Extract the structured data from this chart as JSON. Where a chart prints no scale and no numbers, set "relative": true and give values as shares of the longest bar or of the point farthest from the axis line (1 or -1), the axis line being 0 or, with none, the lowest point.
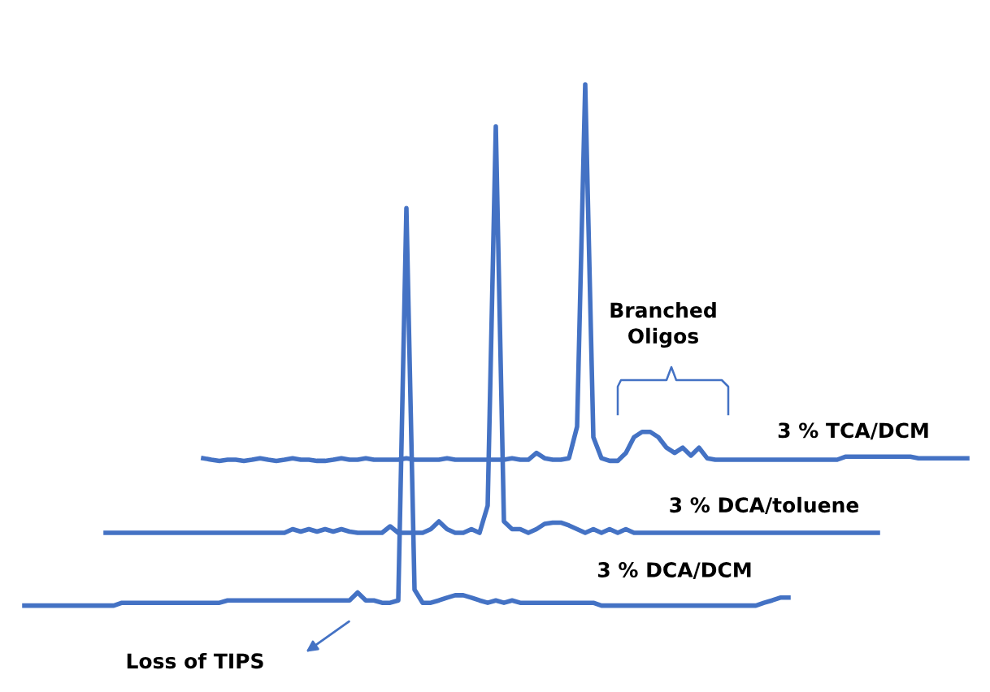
{
  "chart_data": [
    {
      "type": "line",
      "relative": true,
      "line_style": "solid",
      "categories": [
        null,
        null,
        null,
        null,
        null,
        null,
        null,
        null,
        null,
        null,
        null,
        null,
        null,
        null,
        null,
        null,
        null,
        null,
        null,
        null,
        null,
        null,
        null,
        null,
        null,
        null,
        null,
        null,
        null,
        null,
        null,
        null,
        null,
        null,
        null,
        null,
        null,
        null,
        null,
        null,
        null,
        null,
        null,
        null,
        null,
        null,
        null,
        null,
        null,
        null,
        null,
        null,
        null,
        null,
        null,
        null,
        null,
        null,
        null,
        null,
        null,
        null,
        null,
        null,
        null,
        null,
        null,
        null,
        null,
        null,
        null,
        null,
        null,
        null,
        null,
        null,
        null,
        null,
        null,
        null,
        null,
        null,
        null,
        null,
        null,
        null,
        null,
        null,
        null,
        null,
        null,
        null,
        null,
        null,
        null
      ],
      "series": [
        {
          "name": "3 % TCA/DCM",
          "color": "#4472c4",
          "values": [
            0.007,
            0.003,
            0,
            0.003,
            0.003,
            0,
            0.003,
            0.007,
            0.003,
            0,
            0.003,
            0.007,
            0.003,
            0.003,
            0,
            0,
            0.003,
            0.007,
            0.003,
            0.003,
            0.007,
            0.003,
            0.003,
            0.003,
            0.003,
            0.007,
            0.003,
            0.003,
            0.003,
            0.003,
            0.007,
            0.003,
            0.003,
            0.003,
            0.003,
            0.003,
            0.003,
            0.003,
            0.007,
            0.003,
            0.003,
            0.021,
            0.007,
            0.003,
            0.003,
            0.007,
            0.091,
            1,
            0.063,
            0.007,
            0,
            0,
            0.021,
            0.063,
            0.077,
            0.077,
            0.063,
            0.035,
            0.021,
            0.035,
            0.014,
            0.035,
            0.007,
            0.003,
            0.003,
            0.003,
            0.003,
            0.003,
            0.003,
            0.003,
            0.003,
            0.003,
            0.003,
            0.003,
            0.003,
            0.003,
            0.003,
            0.003,
            0.003,
            0.011,
            0.011,
            0.011,
            0.011,
            0.011,
            0.011,
            0.011,
            0.011,
            0.011,
            0.007,
            0.007,
            0.007,
            0.007,
            0.007,
            0.007,
            0.007
          ]
        }
      ],
      "annotations": [
        "Branched\nOligos"
      ]
    },
    {
      "type": "line",
      "relative": true,
      "line_style": "solid",
      "categories": [
        null,
        null,
        null,
        null,
        null,
        null,
        null,
        null,
        null,
        null,
        null,
        null,
        null,
        null,
        null,
        null,
        null,
        null,
        null,
        null,
        null,
        null,
        null,
        null,
        null,
        null,
        null,
        null,
        null,
        null,
        null,
        null,
        null,
        null,
        null,
        null,
        null,
        null,
        null,
        null,
        null,
        null,
        null,
        null,
        null,
        null,
        null,
        null,
        null,
        null,
        null,
        null,
        null,
        null,
        null,
        null,
        null,
        null,
        null,
        null,
        null,
        null,
        null,
        null,
        null,
        null,
        null,
        null,
        null,
        null,
        null,
        null,
        null,
        null,
        null,
        null,
        null,
        null,
        null,
        null,
        null,
        null,
        null,
        null,
        null,
        null,
        null,
        null,
        null,
        null,
        null,
        null,
        null,
        null,
        null,
        null
      ],
      "series": [
        {
          "name": "3 % DCA/toluene",
          "color": "#4472c4",
          "values": [
            0,
            0,
            0,
            0,
            0,
            0,
            0,
            0,
            0,
            0,
            0,
            0,
            0,
            0,
            0,
            0,
            0,
            0,
            0,
            0,
            0,
            0,
            0,
            0.009,
            0.003,
            0.009,
            0.003,
            0.009,
            0.003,
            0.009,
            0.003,
            0,
            0,
            0,
            0,
            0.016,
            0,
            0,
            0,
            0,
            0.009,
            0.028,
            0.009,
            0,
            0,
            0.009,
            0,
            0.067,
            1,
            0.028,
            0.009,
            0.009,
            0,
            0.009,
            0.022,
            0.025,
            0.025,
            0.018,
            0.009,
            0,
            0.009,
            0,
            0.009,
            0,
            0.009,
            0,
            0,
            0,
            0,
            0,
            0,
            0,
            0,
            0,
            0,
            0,
            0,
            0,
            0,
            0,
            0,
            0,
            0,
            0,
            0,
            0,
            0,
            0,
            0,
            0,
            0,
            0,
            0,
            0,
            0,
            0
          ]
        }
      ]
    },
    {
      "type": "line",
      "relative": true,
      "line_style": "solid",
      "categories": [
        null,
        null,
        null,
        null,
        null,
        null,
        null,
        null,
        null,
        null,
        null,
        null,
        null,
        null,
        null,
        null,
        null,
        null,
        null,
        null,
        null,
        null,
        null,
        null,
        null,
        null,
        null,
        null,
        null,
        null,
        null,
        null,
        null,
        null,
        null,
        null,
        null,
        null,
        null,
        null,
        null,
        null,
        null,
        null,
        null,
        null,
        null,
        null,
        null,
        null,
        null,
        null,
        null,
        null,
        null,
        null,
        null,
        null,
        null,
        null,
        null,
        null,
        null,
        null,
        null,
        null,
        null,
        null,
        null,
        null,
        null,
        null,
        null,
        null,
        null,
        null,
        null,
        null,
        null,
        null,
        null,
        null,
        null,
        null,
        null,
        null,
        null,
        null,
        null,
        null,
        null,
        null,
        null,
        null,
        null
      ],
      "series": [
        {
          "name": "3 % DCA/DCM",
          "color": "#4472c4",
          "values": [
            0,
            0,
            0,
            0,
            0,
            0,
            0,
            0,
            0,
            0,
            0,
            0,
            0.007,
            0.007,
            0.007,
            0.007,
            0.007,
            0.007,
            0.007,
            0.007,
            0.007,
            0.007,
            0.007,
            0.007,
            0.007,
            0.013,
            0.013,
            0.013,
            0.013,
            0.013,
            0.013,
            0.013,
            0.013,
            0.013,
            0.013,
            0.013,
            0.013,
            0.013,
            0.013,
            0.013,
            0.013,
            0.033,
            0.013,
            0.013,
            0.007,
            0.007,
            0.013,
            1,
            0.04,
            0.007,
            0.007,
            0.013,
            0.02,
            0.026,
            0.026,
            0.02,
            0.013,
            0.007,
            0.013,
            0.007,
            0.013,
            0.007,
            0.007,
            0.007,
            0.007,
            0.007,
            0.007,
            0.007,
            0.007,
            0.007,
            0.007,
            0,
            0,
            0,
            0,
            0,
            0,
            0,
            0,
            0,
            0,
            0,
            0,
            0,
            0,
            0,
            0,
            0,
            0,
            0,
            0,
            0.007,
            0.013,
            0.02,
            0.02
          ]
        }
      ],
      "annotations": [
        "Loss of TIPS"
      ]
    }
  ]
}
